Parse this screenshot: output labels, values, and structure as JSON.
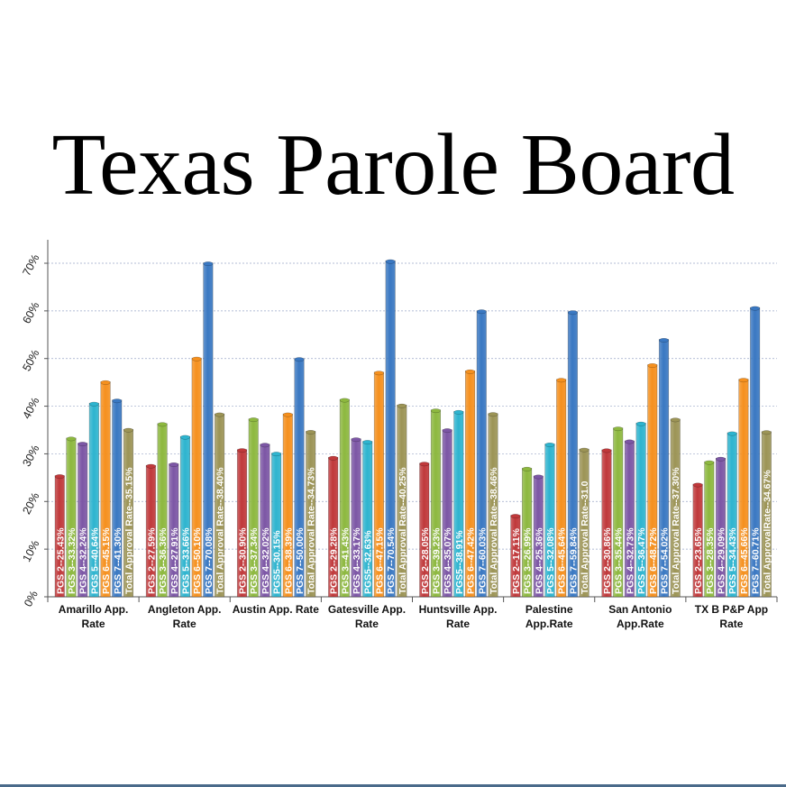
{
  "page": {
    "title": "Texas Parole Board",
    "accent_line_color": "#4a6a8a"
  },
  "chart_data": {
    "type": "bar",
    "title": "Texas Parole Board",
    "ylim": [
      0,
      0.75
    ],
    "yticks": [
      "0%",
      "10%",
      "20%",
      "30%",
      "40%",
      "50%",
      "60%",
      "70%"
    ],
    "grid": true,
    "categories": [
      "Amarillo App. Rate",
      "Angleton App. Rate",
      "Austin App. Rate",
      "Gatesville App. Rate",
      "Huntsville App. Rate",
      "Palestine App.Rate",
      "San Antonio App.Rate",
      "TX B P&PApp Rate"
    ],
    "series": [
      {
        "color": "#c0393b",
        "values": [
          0.2543,
          0.2759,
          0.309,
          0.2928,
          0.2805,
          0.1711,
          0.3086,
          0.2365
        ],
        "labels": [
          "PGS 2--25.43%",
          "PGS 2--27.59%",
          "PGS 2--30.90%",
          "PGS 2--29.28%",
          "PGS 2--28.05%",
          "PGS 2--17.11%",
          "PGS 2--30.86%",
          "PGS 2--23.65%"
        ]
      },
      {
        "color": "#8db83f",
        "values": [
          0.3332,
          0.3636,
          0.3734,
          0.4143,
          0.3923,
          0.2699,
          0.3544,
          0.2835
        ],
        "labels": [
          "PGS 3--33.32%",
          "PGS 3--36.36%",
          "PGS 3--37.34%",
          "PGS 3--41.43%",
          "PGS 3--39.23%",
          "PGS 3--26.99%",
          "PGS 3--35.44%",
          "PGS 3--28.35%"
        ]
      },
      {
        "color": "#7c56a5",
        "values": [
          0.3224,
          0.2791,
          0.3202,
          0.3317,
          0.3507,
          0.2536,
          0.3273,
          0.2909
        ],
        "labels": [
          "PGS 4--32.24%",
          "PGS 4--27.91%",
          "PGS 4--32.02%",
          "PGS 4--33.17%",
          "PGS 4--35.07%",
          "PGS 4--25.36%",
          "PGS 4--32.73%",
          "PGS 4--29.09%"
        ]
      },
      {
        "color": "#2eb4cf",
        "values": [
          0.4064,
          0.3366,
          0.3015,
          0.3263,
          0.3891,
          0.3208,
          0.3647,
          0.3443
        ],
        "labels": [
          "PGS 5--40.64%",
          "PGS 5--33.66%",
          "PGS5--30.15%",
          "PGS5--32.63%",
          "PGS5--38.91%",
          "PGS 5--32.08%",
          "PGS 5--36.47%",
          "PGS 5--34.43%"
        ]
      },
      {
        "color": "#f5901e",
        "values": [
          0.4515,
          0.501,
          0.3839,
          0.4715,
          0.4742,
          0.4564,
          0.4872,
          0.4566
        ],
        "labels": [
          "PGS 6--45.15%",
          "PGS 6--50.10%",
          "PGS 6--38.39%",
          "PGS 6--47.15%",
          "PGS 6--47.42%",
          "PGS 6--45.64%",
          "PGS 6--48.72%",
          "PGS 6--45.66%"
        ]
      },
      {
        "color": "#3a78c2",
        "values": [
          0.413,
          0.7008,
          0.5,
          0.7054,
          0.6003,
          0.5984,
          0.5402,
          0.6071
        ],
        "labels": [
          "PGS 7--41.30%",
          "PGS 7--70.08%",
          "PGS 7--50.00%",
          "PGS 7--70.54%",
          "PGS 7--60.03%",
          "PGS 7--59.84%",
          "PGS 7--54.02%",
          "PGS 7--60.71%"
        ]
      },
      {
        "color": "#9c9456",
        "values": [
          0.3515,
          0.384,
          0.3473,
          0.4025,
          0.3846,
          0.31,
          0.373,
          0.3467
        ],
        "labels": [
          "Total Approval Rate--35.15%",
          "Total Approval Rate--38.40%",
          "Total Approval Rate--34.73%",
          "Total Approval Rate--40.25%",
          "Total Approval Rate--38.46%",
          "Total Approval Rate--31.0",
          "Total Approval Rate--37.30%",
          "Total ApprovalRate--34.67%"
        ]
      }
    ]
  }
}
